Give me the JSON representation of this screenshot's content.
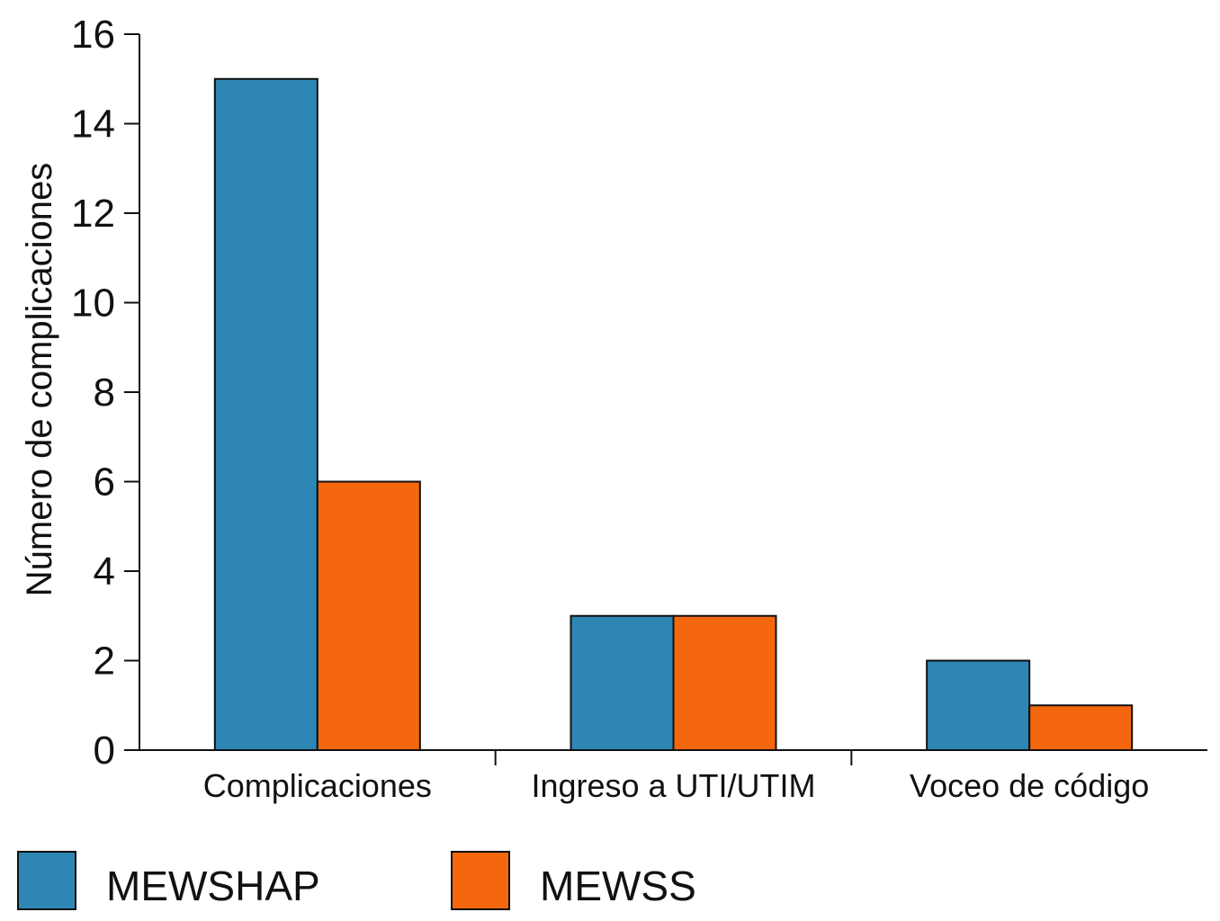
{
  "chart_data": {
    "type": "bar",
    "title": "",
    "xlabel": "",
    "ylabel": "Número de complicaciones",
    "ylim": [
      0,
      16
    ],
    "yticks": [
      0,
      2,
      4,
      6,
      8,
      10,
      12,
      14,
      16
    ],
    "grid": false,
    "legend_position": "bottom-left",
    "categories": [
      "Complicaciones",
      "Ingreso a UTI/UTIM",
      "Voceo de código"
    ],
    "series": [
      {
        "name": "MEWSHAP",
        "color": "#2e86b5",
        "values": [
          15,
          3,
          2
        ]
      },
      {
        "name": "MEWSS",
        "color": "#f5670e",
        "values": [
          6,
          3,
          1
        ]
      }
    ]
  }
}
